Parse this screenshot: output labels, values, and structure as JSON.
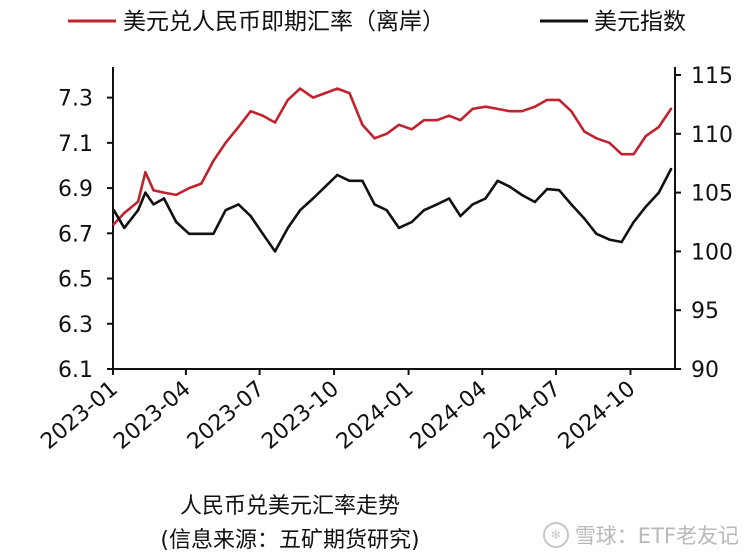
{
  "chart_data": {
    "type": "line",
    "title": "人民币兑美元汇率走势",
    "source": "(信息来源：五矿期货研究)",
    "x_ticks": [
      "2023-01",
      "2023-04",
      "2023-07",
      "2023-10",
      "2024-01",
      "2024-04",
      "2024-07",
      "2024-10"
    ],
    "left_axis": {
      "ylim": [
        6.1,
        7.4
      ],
      "ticks": [
        "6.1",
        "6.3",
        "6.5",
        "6.7",
        "6.9",
        "7.1",
        "7.3"
      ]
    },
    "right_axis": {
      "ylim": [
        90,
        115
      ],
      "ticks": [
        "90",
        "95",
        "100",
        "105",
        "110",
        "115"
      ]
    },
    "legend_position": "top",
    "grid": false,
    "series": [
      {
        "name": "美元兑人民币即期汇率（离岸）",
        "axis": "left",
        "color": "#c0222e",
        "x": [
          "2023-01-02",
          "2023-01-15",
          "2023-02-01",
          "2023-02-10",
          "2023-02-20",
          "2023-03-05",
          "2023-03-20",
          "2023-04-05",
          "2023-04-20",
          "2023-05-05",
          "2023-05-20",
          "2023-06-05",
          "2023-06-20",
          "2023-07-05",
          "2023-07-20",
          "2023-08-05",
          "2023-08-20",
          "2023-09-05",
          "2023-09-20",
          "2023-10-05",
          "2023-10-20",
          "2023-11-05",
          "2023-11-20",
          "2023-12-05",
          "2023-12-20",
          "2024-01-05",
          "2024-01-20",
          "2024-02-05",
          "2024-02-20",
          "2024-03-05",
          "2024-03-20",
          "2024-04-05",
          "2024-04-20",
          "2024-05-05",
          "2024-05-20",
          "2024-06-05",
          "2024-06-20",
          "2024-07-05",
          "2024-07-20",
          "2024-08-05",
          "2024-08-20",
          "2024-09-05",
          "2024-09-20",
          "2024-10-05",
          "2024-10-20",
          "2024-11-05",
          "2024-11-20"
        ],
        "values": [
          6.74,
          6.79,
          6.84,
          6.97,
          6.89,
          6.88,
          6.87,
          6.9,
          6.92,
          7.02,
          7.1,
          7.17,
          7.24,
          7.22,
          7.19,
          7.29,
          7.34,
          7.3,
          7.32,
          7.34,
          7.32,
          7.18,
          7.12,
          7.14,
          7.18,
          7.16,
          7.2,
          7.2,
          7.22,
          7.2,
          7.25,
          7.26,
          7.25,
          7.24,
          7.24,
          7.26,
          7.29,
          7.29,
          7.24,
          7.15,
          7.12,
          7.1,
          7.05,
          7.05,
          7.13,
          7.17,
          7.25
        ]
      },
      {
        "name": "美元指数",
        "axis": "right",
        "color": "#111111",
        "x": [
          "2023-01-02",
          "2023-01-15",
          "2023-02-01",
          "2023-02-10",
          "2023-02-20",
          "2023-03-05",
          "2023-03-20",
          "2023-04-05",
          "2023-04-20",
          "2023-05-05",
          "2023-05-20",
          "2023-06-05",
          "2023-06-20",
          "2023-07-05",
          "2023-07-20",
          "2023-08-05",
          "2023-08-20",
          "2023-09-05",
          "2023-09-20",
          "2023-10-05",
          "2023-10-20",
          "2023-11-05",
          "2023-11-20",
          "2023-12-05",
          "2023-12-20",
          "2024-01-05",
          "2024-01-20",
          "2024-02-05",
          "2024-02-20",
          "2024-03-05",
          "2024-03-20",
          "2024-04-05",
          "2024-04-20",
          "2024-05-05",
          "2024-05-20",
          "2024-06-05",
          "2024-06-20",
          "2024-07-05",
          "2024-07-20",
          "2024-08-05",
          "2024-08-20",
          "2024-09-05",
          "2024-09-20",
          "2024-10-05",
          "2024-10-20",
          "2024-11-05",
          "2024-11-20"
        ],
        "values": [
          103.5,
          102.0,
          103.5,
          105.0,
          104.0,
          104.5,
          102.5,
          101.5,
          101.5,
          101.5,
          103.5,
          104.0,
          103.0,
          101.5,
          100.0,
          102.0,
          103.5,
          104.5,
          105.5,
          106.5,
          106.0,
          106.0,
          104.0,
          103.5,
          102.0,
          102.5,
          103.5,
          104.0,
          104.5,
          103.0,
          104.0,
          104.5,
          106.0,
          105.5,
          104.8,
          104.2,
          105.3,
          105.2,
          104.0,
          102.8,
          101.5,
          101.0,
          100.8,
          102.5,
          103.8,
          105.0,
          107.0
        ]
      }
    ]
  },
  "watermark": {
    "text": "雪球：ETF老友记",
    "icon": "snowball-icon"
  }
}
